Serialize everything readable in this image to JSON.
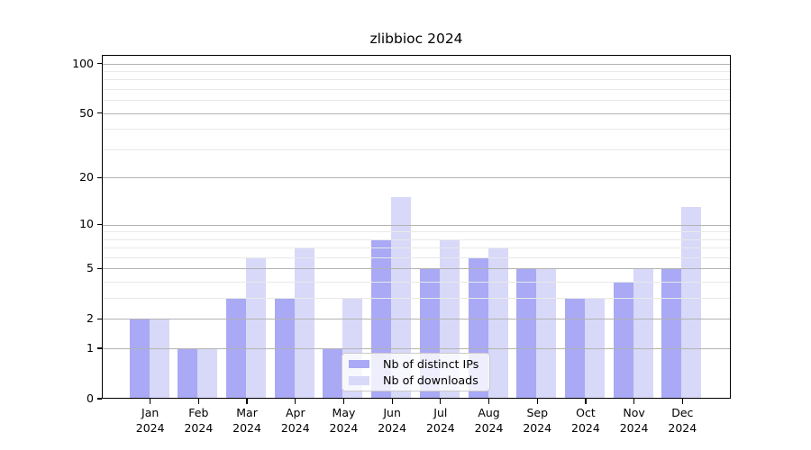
{
  "title": "zlibbioc 2024",
  "chart_data": {
    "type": "bar",
    "title": "zlibbioc 2024",
    "categories": [
      "Jan",
      "Feb",
      "Mar",
      "Apr",
      "May",
      "Jun",
      "Jul",
      "Aug",
      "Sep",
      "Oct",
      "Nov",
      "Dec"
    ],
    "year_label": "2024",
    "series": [
      {
        "name": "Nb of distinct IPs",
        "color": "#a9a9f5",
        "values": [
          2,
          1,
          3,
          3,
          1,
          8,
          5,
          6,
          5,
          3,
          4,
          5
        ]
      },
      {
        "name": "Nb of downloads",
        "color": "#d8d8f9",
        "values": [
          2,
          1,
          6,
          7,
          3,
          15,
          8,
          7,
          5,
          3,
          5,
          13
        ]
      }
    ],
    "xlabel": "",
    "ylabel": "",
    "yscale": "log1p",
    "ylim": [
      0,
      113
    ],
    "yticks_major": [
      0,
      1,
      2,
      5,
      10,
      20,
      50,
      100
    ],
    "yticks_minor": [
      3,
      4,
      6,
      7,
      8,
      9,
      30,
      40,
      60,
      70,
      80,
      90
    ],
    "grid": true,
    "grid_above_bars": true,
    "legend_position": "lower center"
  },
  "colors": {
    "distinct_ips_bar": "#a9a9f5",
    "downloads_bar": "#d8d8f9",
    "grid_major": "#b3b3b3",
    "grid_minor": "#e9e9e9",
    "axis": "#000000",
    "legend_border": "#cbcbcb",
    "background": "#ffffff"
  }
}
